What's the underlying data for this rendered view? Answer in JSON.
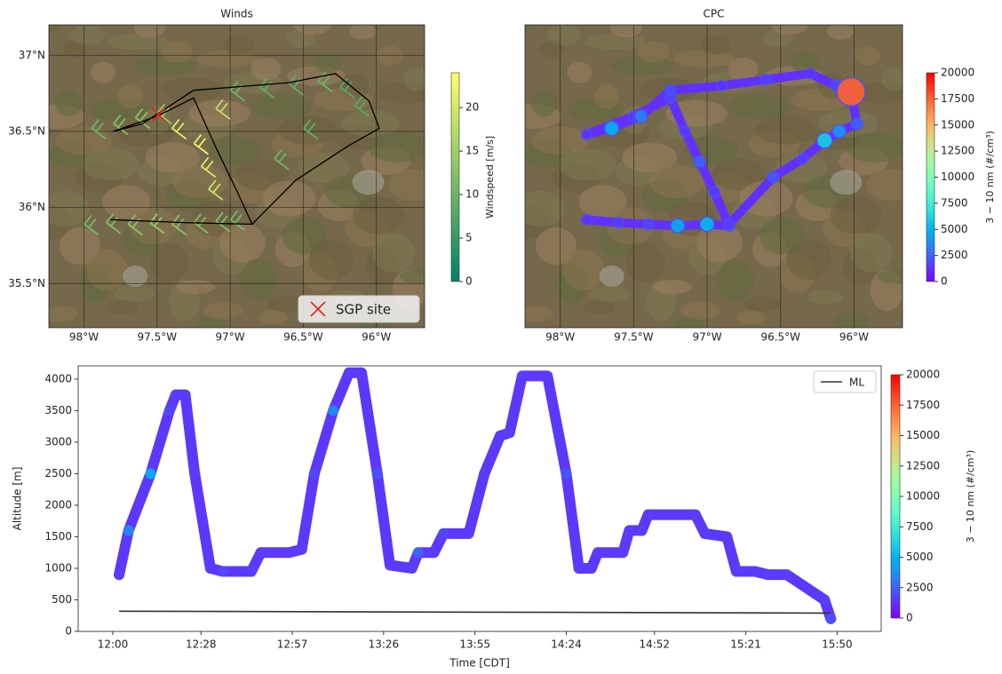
{
  "chart_data": [
    {
      "type": "map",
      "title": "Winds",
      "xlim": [
        -98.24,
        -95.67
      ],
      "ylim": [
        35.21,
        37.2
      ],
      "xticks": [
        {
          "value": -98,
          "label": "98°W"
        },
        {
          "value": -97.5,
          "label": "97.5°W"
        },
        {
          "value": -97,
          "label": "97°W"
        },
        {
          "value": -96.5,
          "label": "96.5°W"
        },
        {
          "value": -96,
          "label": "96°W"
        }
      ],
      "yticks": [
        {
          "value": 35.5,
          "label": "35.5°N"
        },
        {
          "value": 36,
          "label": "36°N"
        },
        {
          "value": 36.5,
          "label": "36.5°N"
        },
        {
          "value": 37,
          "label": "37°N"
        }
      ],
      "grid": true,
      "barbs": {
        "lon": [
          -97.9,
          -97.75,
          -97.6,
          -97.45,
          -97.3,
          -97.15,
          -97.0,
          -96.9,
          -97.85,
          -97.7,
          -97.55,
          -97.4,
          -97.3,
          -97.15,
          -97.1,
          -97.05,
          -97.0,
          -96.9,
          -96.7,
          -96.5,
          -96.3,
          -96.15,
          -96.05,
          -96.4,
          -96.6
        ],
        "lat": [
          35.82,
          35.83,
          35.82,
          35.83,
          35.82,
          35.83,
          35.84,
          35.85,
          36.45,
          36.48,
          36.52,
          36.55,
          36.45,
          36.35,
          36.2,
          36.05,
          36.58,
          36.7,
          36.72,
          36.74,
          36.76,
          36.72,
          36.6,
          36.45,
          36.25
        ],
        "speed": [
          11,
          12,
          13,
          14,
          13,
          12,
          12,
          11,
          10,
          12,
          13,
          14,
          21,
          22,
          20,
          19,
          18,
          10,
          9,
          9,
          10,
          8,
          8,
          9,
          10
        ]
      },
      "track": {
        "lon": [
          -97.82,
          -97.3,
          -96.85,
          -96.95,
          -97.1,
          -97.25,
          -97.5,
          -97.8,
          -97.6,
          -97.25,
          -96.6,
          -96.28,
          -96.05,
          -95.98,
          -96.2,
          -96.55,
          -96.85
        ],
        "lat": [
          35.92,
          35.9,
          35.89,
          36.1,
          36.4,
          36.72,
          36.6,
          36.5,
          36.55,
          36.77,
          36.82,
          36.88,
          36.7,
          36.52,
          36.4,
          36.18,
          35.89
        ],
        "color": "#000000"
      },
      "markers": [
        {
          "name": "SGP site",
          "lon": -97.49,
          "lat": 36.61,
          "color": "#e8241c"
        }
      ],
      "legend": "lower right",
      "colorbar": {
        "label": "Windspeed [m/s]",
        "lim": [
          0,
          24
        ],
        "ticks": [
          0,
          5,
          10,
          15,
          20
        ],
        "colormap": "summer"
      }
    },
    {
      "type": "map",
      "title": "CPC",
      "xlim": [
        -98.24,
        -95.67
      ],
      "ylim": [
        35.21,
        37.2
      ],
      "xticks": [
        {
          "value": -98,
          "label": "98°W"
        },
        {
          "value": -97.5,
          "label": "97.5°W"
        },
        {
          "value": -97,
          "label": "97°W"
        },
        {
          "value": -96.5,
          "label": "96.5°W"
        },
        {
          "value": -96,
          "label": "96°W"
        }
      ],
      "grid": true,
      "points": {
        "lon": [
          -97.82,
          -97.6,
          -97.4,
          -97.2,
          -97.0,
          -96.85,
          -96.95,
          -97.05,
          -97.15,
          -97.25,
          -97.5,
          -97.82,
          -97.65,
          -97.45,
          -97.25,
          -96.9,
          -96.6,
          -96.3,
          -96.12,
          -96.02,
          -95.98,
          -96.1,
          -96.2,
          -96.35,
          -96.55,
          -96.85
        ],
        "lat": [
          35.92,
          35.9,
          35.89,
          35.88,
          35.89,
          35.88,
          36.1,
          36.3,
          36.5,
          36.72,
          36.6,
          36.48,
          36.52,
          36.6,
          36.77,
          36.8,
          36.84,
          36.88,
          36.8,
          36.76,
          36.55,
          36.5,
          36.44,
          36.32,
          36.2,
          35.89
        ],
        "values": [
          1200,
          1500,
          1800,
          4800,
          5200,
          1800,
          1500,
          2500,
          1500,
          1800,
          1500,
          1200,
          5000,
          3500,
          2000,
          1200,
          1500,
          1200,
          1800,
          17500,
          2500,
          4000,
          6000,
          1500,
          2200,
          1500
        ]
      },
      "colorbar": {
        "label": "3 − 10 nm (#/cm³)",
        "lim": [
          0,
          20000
        ],
        "ticks": [
          0,
          2500,
          5000,
          7500,
          10000,
          12500,
          15000,
          17500,
          20000
        ],
        "colormap": "rainbow"
      }
    },
    {
      "type": "scatter",
      "xlabel": "Time [CDT]",
      "ylabel": "Altitude [m]",
      "xlim": [
        "11:49",
        "16:04"
      ],
      "ylim": [
        0,
        4210
      ],
      "xticks": [
        "12:00",
        "12:28",
        "12:57",
        "13:26",
        "13:55",
        "14:24",
        "14:52",
        "15:21",
        "15:50"
      ],
      "yticks": [
        0,
        500,
        1000,
        1500,
        2000,
        2500,
        3000,
        3500,
        4000
      ],
      "x": [
        "12:02",
        "12:05",
        "12:12",
        "12:18",
        "12:20",
        "12:23",
        "12:26",
        "12:31",
        "12:35",
        "12:44",
        "12:47",
        "12:56",
        "13:00",
        "13:04",
        "13:10",
        "13:15",
        "13:19",
        "13:24",
        "13:28",
        "13:35",
        "13:37",
        "13:42",
        "13:45",
        "13:53",
        "13:58",
        "14:03",
        "14:06",
        "14:10",
        "14:18",
        "14:24",
        "14:28",
        "14:32",
        "14:34",
        "14:42",
        "14:44",
        "14:48",
        "14:50",
        "15:05",
        "15:08",
        "15:15",
        "15:18",
        "15:24",
        "15:28",
        "15:34",
        "15:46",
        "15:48"
      ],
      "values": [
        900,
        1600,
        2500,
        3500,
        3750,
        3750,
        2500,
        1000,
        950,
        950,
        1250,
        1250,
        1300,
        2500,
        3500,
        4100,
        4100,
        2500,
        1050,
        1000,
        1250,
        1250,
        1550,
        1550,
        2500,
        3100,
        3150,
        4050,
        4050,
        2500,
        1000,
        1000,
        1250,
        1250,
        1600,
        1600,
        1850,
        1850,
        1550,
        1500,
        950,
        950,
        900,
        900,
        500,
        200
      ],
      "c_values": [
        1500,
        3500,
        4500,
        1800,
        1500,
        1500,
        1500,
        1500,
        1800,
        1500,
        1500,
        1500,
        1500,
        1800,
        3500,
        1500,
        1500,
        2000,
        1500,
        1500,
        2500,
        1500,
        1800,
        1500,
        1500,
        1500,
        1500,
        1500,
        1500,
        2200,
        1500,
        1500,
        1500,
        1500,
        1500,
        1500,
        1500,
        1500,
        1500,
        1500,
        1500,
        1500,
        1500,
        1500,
        1500,
        2000
      ],
      "lines": [
        {
          "name": "ML",
          "color": "#333333",
          "x": [
            "12:02",
            "15:48"
          ],
          "values": [
            320,
            290
          ]
        }
      ],
      "legend": "upper right",
      "colorbar": {
        "label": "3 − 10 nm (#/cm³)",
        "lim": [
          0,
          20000
        ],
        "ticks": [
          0,
          2500,
          5000,
          7500,
          10000,
          12500,
          15000,
          17500,
          20000
        ],
        "colormap": "rainbow"
      }
    }
  ]
}
